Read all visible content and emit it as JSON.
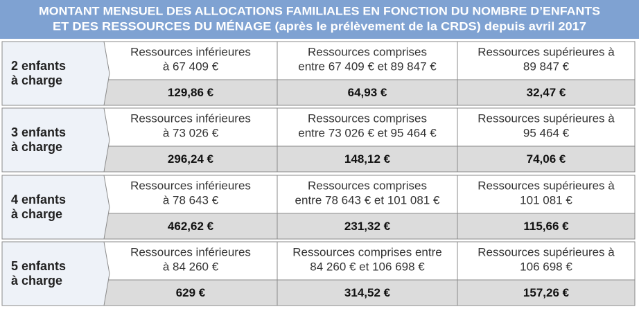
{
  "title": [
    "MONTANT MENSUEL DES ALLOCATIONS FAMILIALES EN FONCTION DU NOMBRE D’ENFANTS",
    "ET DES RESSOURCES DU MÉNAGE (après le prélèvement de la CRDS) depuis avril 2017"
  ],
  "groups": [
    {
      "label": [
        "2 enfants",
        "à charge"
      ],
      "cells": [
        {
          "resources": [
            "Ressources inférieures",
            "à 67 409 €"
          ],
          "amount": "129,86 €"
        },
        {
          "resources": [
            "Ressources comprises",
            "entre 67 409 € et 89 847 €"
          ],
          "amount": "64,93 €"
        },
        {
          "resources": [
            "Ressources supérieures à",
            "89 847 €"
          ],
          "amount": "32,47 €"
        }
      ]
    },
    {
      "label": [
        "3 enfants",
        "à charge"
      ],
      "cells": [
        {
          "resources": [
            "Ressources inférieures",
            "à 73 026 €"
          ],
          "amount": "296,24 €"
        },
        {
          "resources": [
            "Ressources comprises",
            "entre 73 026 € et 95 464 €"
          ],
          "amount": "148,12 €"
        },
        {
          "resources": [
            "Ressources supérieures à",
            "95 464 €"
          ],
          "amount": "74,06 €"
        }
      ]
    },
    {
      "label": [
        "4 enfants",
        "à charge"
      ],
      "cells": [
        {
          "resources": [
            "Ressources inférieures",
            "à 78 643 €"
          ],
          "amount": "462,62 €"
        },
        {
          "resources": [
            "Ressources comprises",
            "entre 78 643 € et 101 081 €"
          ],
          "amount": "231,32 €"
        },
        {
          "resources": [
            "Ressources supérieures à",
            "101 081 €"
          ],
          "amount": "115,66 €"
        }
      ]
    },
    {
      "label": [
        "5 enfants",
        "à charge"
      ],
      "cells": [
        {
          "resources": [
            "Ressources inférieures",
            "à 84 260 €"
          ],
          "amount": "629 €"
        },
        {
          "resources": [
            "Ressources comprises entre",
            "84 260 € et 106 698 €"
          ],
          "amount": "314,52 €"
        },
        {
          "resources": [
            "Ressources supérieures à",
            "106 698 €"
          ],
          "amount": "157,26 €"
        }
      ]
    }
  ]
}
